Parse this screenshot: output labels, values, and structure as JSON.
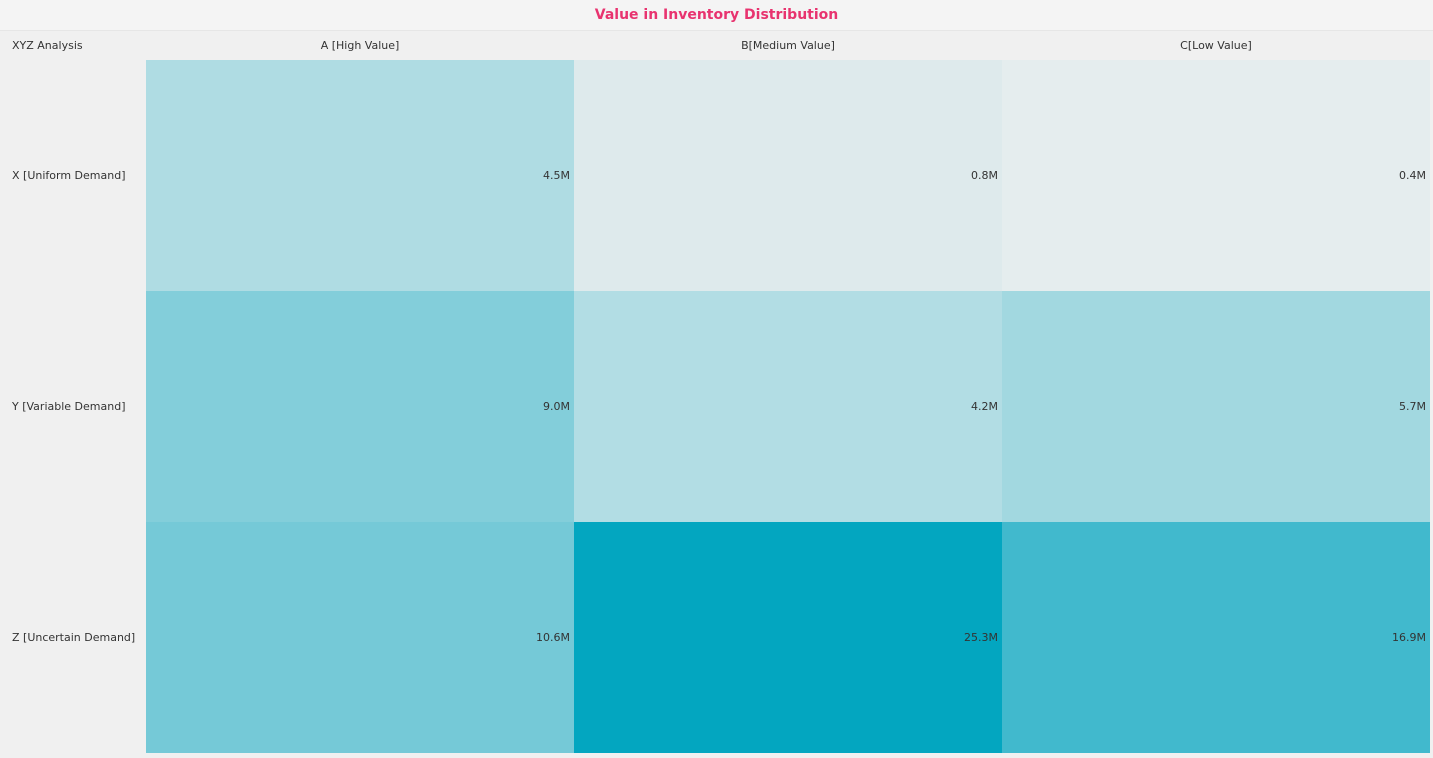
{
  "title": "Value in Inventory Distribution",
  "chart_data": {
    "type": "heatmap",
    "title": "Value in Inventory Distribution",
    "corner_label": "XYZ Analysis",
    "columns": [
      "A [High Value]",
      "B[Medium Value]",
      "C[Low Value]"
    ],
    "rows": [
      "X [Uniform Demand]",
      "Y [Variable Demand]",
      "Z [Uncertain Demand]"
    ],
    "values": [
      [
        4.5,
        0.8,
        0.4
      ],
      [
        9.0,
        4.2,
        5.7
      ],
      [
        10.6,
        25.3,
        16.9
      ]
    ],
    "labels": [
      [
        "4.5M",
        "0.8M",
        "0.4M"
      ],
      [
        "9.0M",
        "4.2M",
        "5.7M"
      ],
      [
        "10.6M",
        "25.3M",
        "16.9M"
      ]
    ],
    "unit": "M",
    "color_scale": {
      "low": "#f0f0f0",
      "high": "#03a6c0"
    },
    "title_color": "#e8336f"
  }
}
